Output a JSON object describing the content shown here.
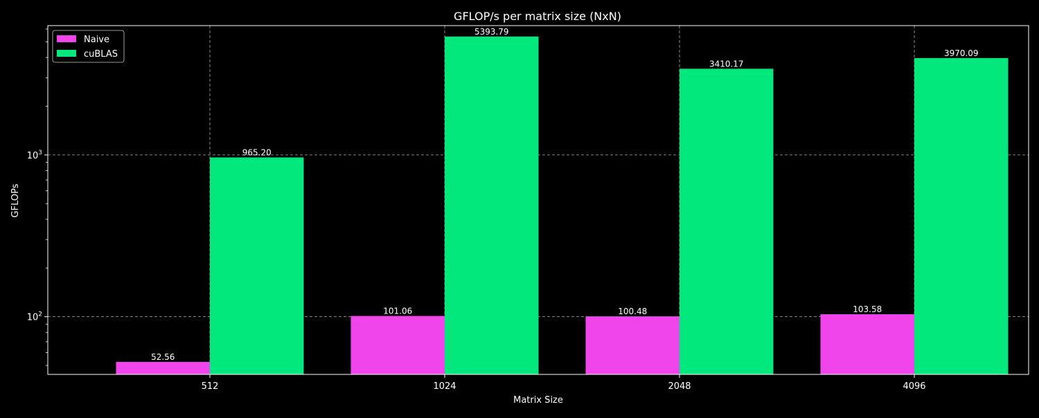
{
  "chart_data": {
    "type": "bar",
    "title": "GFLOP/s per matrix size (NxN)",
    "xlabel": "Matrix Size",
    "ylabel": "GFLOPs",
    "yscale": "log",
    "ylim": [
      44,
      6300
    ],
    "grid": true,
    "legend_position": "top-left",
    "categories": [
      "512",
      "1024",
      "2048",
      "4096"
    ],
    "series": [
      {
        "name": "Naive",
        "color": "#ef45ea",
        "values": [
          52.56,
          101.06,
          100.48,
          103.58
        ],
        "labels": [
          "52.56",
          "101.06",
          "100.48",
          "103.58"
        ]
      },
      {
        "name": "cuBLAS",
        "color": "#02e87d",
        "values": [
          965.2,
          5393.79,
          3410.17,
          3970.09
        ],
        "labels": [
          "965.20",
          "5393.79",
          "3410.17",
          "3970.09"
        ]
      }
    ],
    "y_ticks": [
      {
        "value": 100,
        "base": "10",
        "exp": "2"
      },
      {
        "value": 1000,
        "base": "10",
        "exp": "3"
      }
    ],
    "y_minor_ticks": [
      50,
      60,
      70,
      80,
      90,
      200,
      300,
      400,
      500,
      600,
      700,
      800,
      900,
      2000,
      3000,
      4000,
      5000,
      6000
    ]
  }
}
